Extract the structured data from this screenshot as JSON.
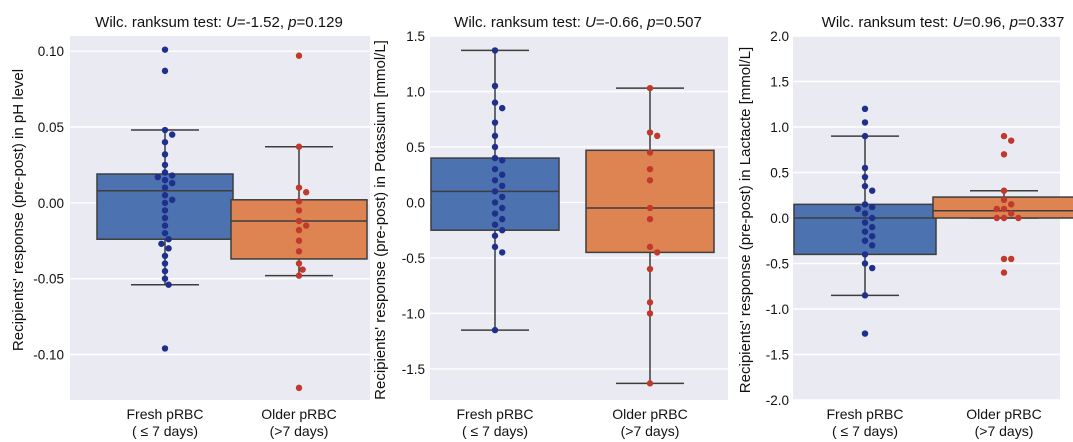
{
  "chart_data": [
    {
      "type": "box",
      "title": "Wilc. ranksum test: U=-1.52, p=0.129",
      "title_parts": {
        "prefix": "Wilc. ranksum test: ",
        "u_symbol": "U",
        "u_value": "=-1.52, ",
        "p_symbol": "p",
        "p_value": "=0.129"
      },
      "ylabel": "Recipients' response (pre-post) in pH level",
      "ylim": [
        -0.13,
        0.11
      ],
      "yticks": [
        0.1,
        0.05,
        0.0,
        -0.05,
        -0.1
      ],
      "ytick_labels": [
        "0.10",
        "0.05",
        "0.00",
        "-0.05",
        "-0.10"
      ],
      "categories": [
        {
          "line1": "Fresh pRBC",
          "line2": "( ≤ 7 days)"
        },
        {
          "line1": "Older pRBC",
          "line2": "(>7 days)"
        }
      ],
      "groups": [
        {
          "color": "#4c72b0",
          "point_color": "#1f2f8c",
          "whisker_low": -0.054,
          "q1": -0.024,
          "median": 0.008,
          "q3": 0.019,
          "whisker_high": 0.048,
          "points": [
            0.101,
            0.087,
            0.048,
            0.045,
            0.04,
            0.032,
            0.025,
            0.02,
            0.018,
            0.017,
            0.015,
            0.013,
            0.01,
            0.005,
            0.002,
            0.0,
            -0.005,
            -0.01,
            -0.015,
            -0.02,
            -0.024,
            -0.027,
            -0.03,
            -0.035,
            -0.04,
            -0.045,
            -0.05,
            -0.054,
            -0.096
          ]
        },
        {
          "color": "#dd8452",
          "point_color": "#c0392b",
          "whisker_low": -0.048,
          "q1": -0.037,
          "median": -0.012,
          "q3": 0.002,
          "whisker_high": 0.037,
          "points": [
            0.097,
            0.037,
            0.01,
            0.007,
            0.001,
            -0.005,
            -0.012,
            -0.015,
            -0.018,
            -0.025,
            -0.032,
            -0.04,
            -0.044,
            -0.048,
            -0.122
          ]
        }
      ]
    },
    {
      "type": "box",
      "title": "Wilc. ranksum test: U=-0.66, p=0.507",
      "title_parts": {
        "prefix": "Wilc. ranksum test: ",
        "u_symbol": "U",
        "u_value": "=-0.66, ",
        "p_symbol": "p",
        "p_value": "=0.507"
      },
      "ylabel": "Recipients' response (pre-post) in Potassium [mmol/L]",
      "ylim": [
        -1.78,
        1.5
      ],
      "yticks": [
        1.5,
        1.0,
        0.5,
        0.0,
        -0.5,
        -1.0,
        -1.5
      ],
      "ytick_labels": [
        "1.5",
        "1.0",
        "0.5",
        "0.0",
        "-0.5",
        "-1.0",
        "-1.5"
      ],
      "categories": [
        {
          "line1": "Fresh pRBC",
          "line2": "( ≤ 7 days)"
        },
        {
          "line1": "Older pRBC",
          "line2": "(>7 days)"
        }
      ],
      "groups": [
        {
          "color": "#4c72b0",
          "point_color": "#1f2f8c",
          "whisker_low": -1.15,
          "q1": -0.25,
          "median": 0.1,
          "q3": 0.4,
          "whisker_high": 1.37,
          "points": [
            1.37,
            1.05,
            0.9,
            0.85,
            0.72,
            0.6,
            0.5,
            0.4,
            0.38,
            0.3,
            0.25,
            0.2,
            0.15,
            0.1,
            0.05,
            0.0,
            -0.05,
            -0.1,
            -0.15,
            -0.2,
            -0.25,
            -0.3,
            -0.4,
            -0.45,
            -1.15
          ]
        },
        {
          "color": "#dd8452",
          "point_color": "#c0392b",
          "whisker_low": -1.63,
          "q1": -0.45,
          "median": -0.05,
          "q3": 0.47,
          "whisker_high": 1.03,
          "points": [
            1.03,
            0.63,
            0.6,
            0.45,
            0.3,
            0.2,
            -0.05,
            -0.15,
            -0.4,
            -0.45,
            -0.6,
            -0.9,
            -1.0,
            -1.63
          ]
        }
      ]
    },
    {
      "type": "box",
      "title": "Wilc. ranksum test: U=0.96, p=0.337",
      "title_parts": {
        "prefix": "Wilc. ranksum test: ",
        "u_symbol": "U",
        "u_value": "=0.96, ",
        "p_symbol": "p",
        "p_value": "=0.337"
      },
      "ylabel": "Recipients' response (pre-post) in Lactacte [mmol/L]",
      "ylim": [
        -2.0,
        2.0
      ],
      "yticks": [
        2.0,
        1.5,
        1.0,
        0.5,
        0.0,
        -0.5,
        -1.0,
        -1.5,
        -2.0
      ],
      "ytick_labels": [
        "2.0",
        "1.5",
        "1.0",
        "0.5",
        "0.0",
        "-0.5",
        "-1.0",
        "-1.5",
        "-2.0"
      ],
      "categories": [
        {
          "line1": "Fresh pRBC",
          "line2": "( ≤ 7 days)"
        },
        {
          "line1": "Older pRBC",
          "line2": "(>7 days)"
        }
      ],
      "groups": [
        {
          "color": "#4c72b0",
          "point_color": "#1f2f8c",
          "whisker_low": -0.85,
          "q1": -0.4,
          "median": 0.0,
          "q3": 0.15,
          "whisker_high": 0.9,
          "points": [
            1.2,
            1.05,
            0.9,
            0.55,
            0.45,
            0.35,
            0.3,
            0.15,
            0.12,
            0.1,
            0.05,
            0.0,
            -0.05,
            -0.1,
            -0.15,
            -0.2,
            -0.25,
            -0.3,
            -0.4,
            -0.5,
            -0.55,
            -0.85,
            -1.27
          ]
        },
        {
          "color": "#dd8452",
          "point_color": "#c0392b",
          "whisker_low": 0.0,
          "q1": 0.0,
          "median": 0.08,
          "q3": 0.23,
          "whisker_high": 0.3,
          "points": [
            0.9,
            0.85,
            0.7,
            0.3,
            0.2,
            0.15,
            0.1,
            0.1,
            0.05,
            0.0,
            0.0,
            0.0,
            -0.45,
            -0.45,
            -0.6
          ]
        }
      ]
    }
  ]
}
